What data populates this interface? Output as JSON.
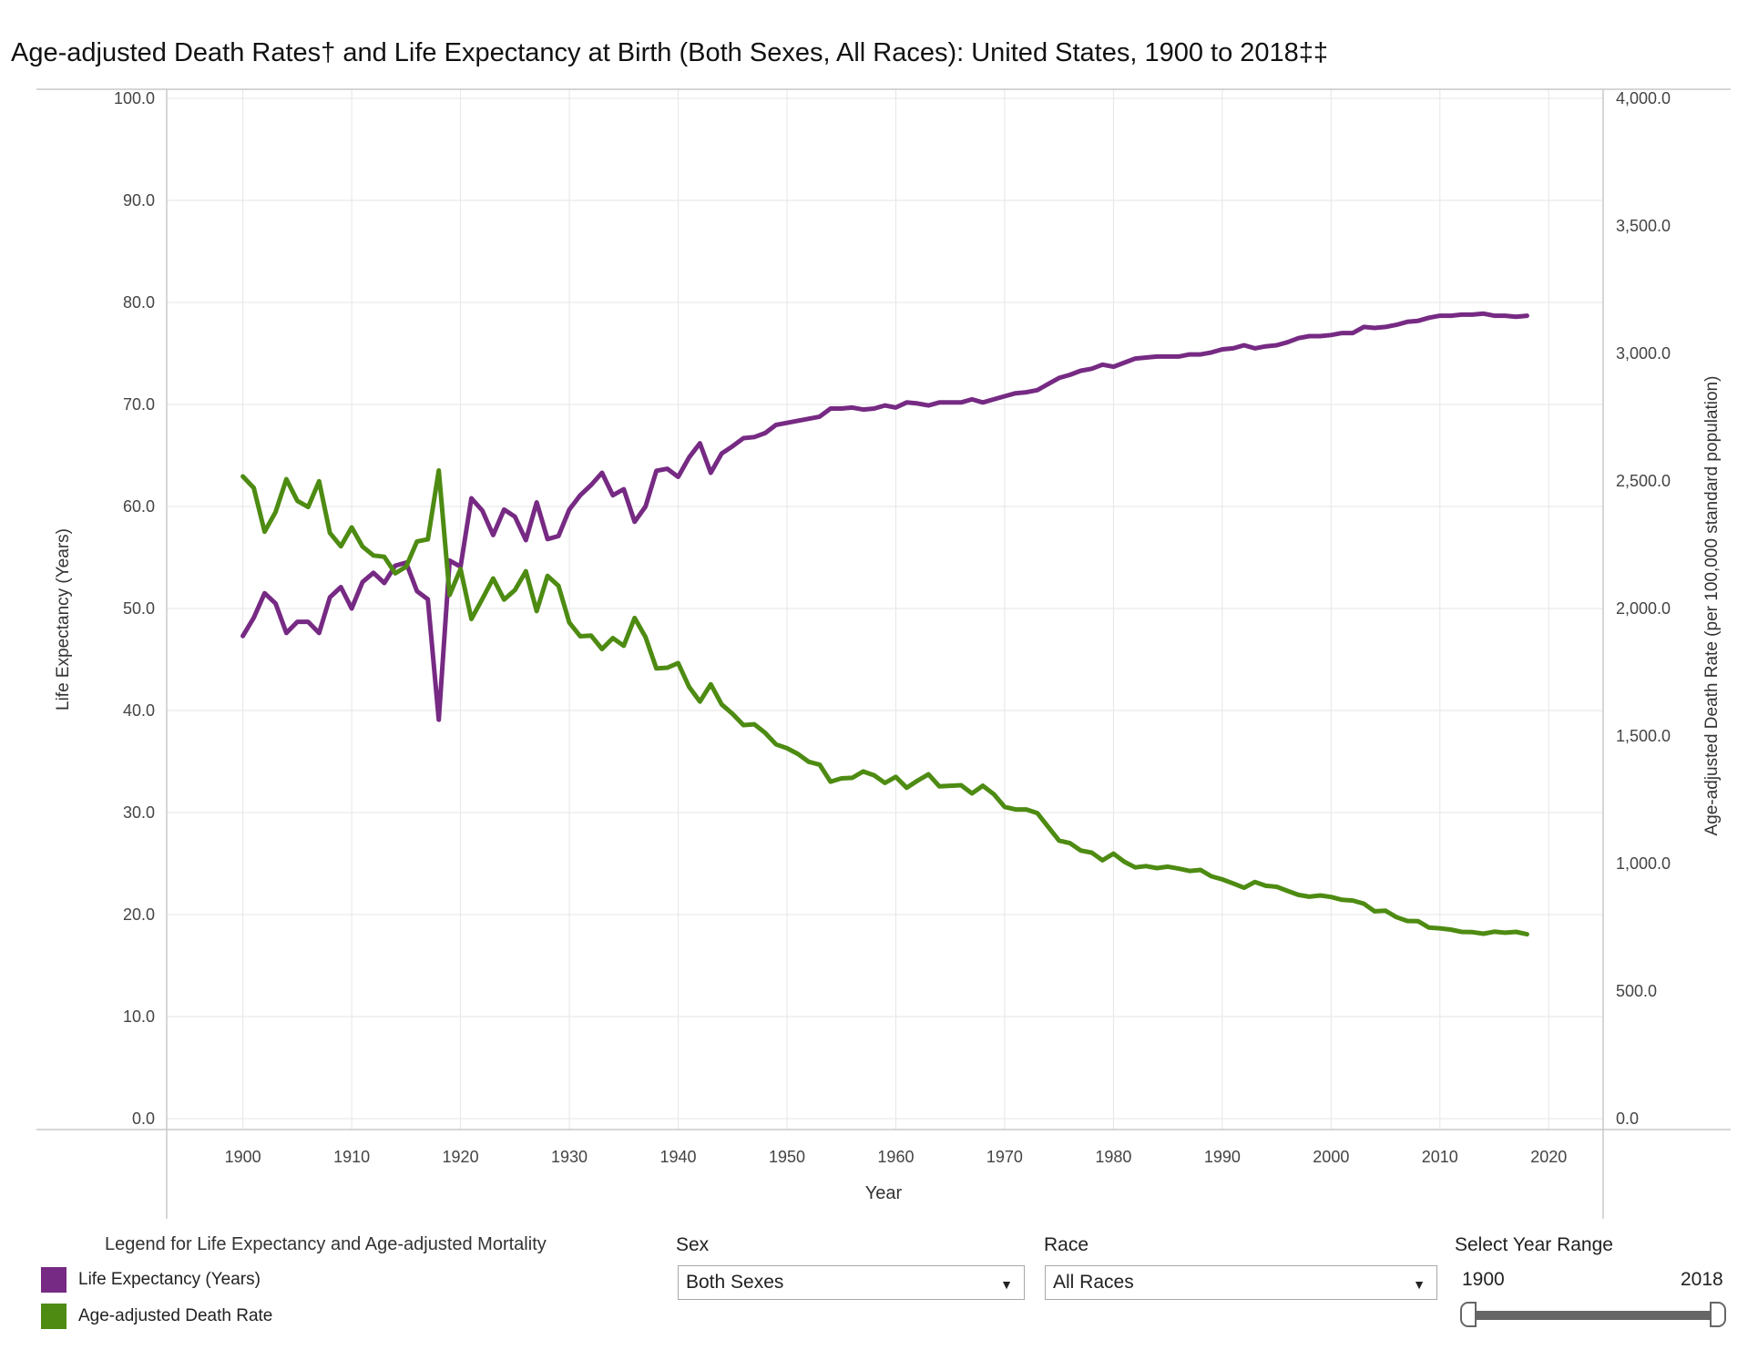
{
  "title": "Age-adjusted Death Rates† and Life Expectancy at Birth (Both Sexes, All Races): United States, 1900 to 2018‡‡",
  "legend": {
    "title": "Legend for Life Expectancy and Age-adjusted Mortality",
    "items": [
      {
        "label": "Life Expectancy (Years)",
        "color": "#762a83"
      },
      {
        "label": "Age-adjusted Death Rate",
        "color": "#4d8b12"
      }
    ]
  },
  "controls": {
    "sex": {
      "label": "Sex",
      "value": "Both Sexes"
    },
    "race": {
      "label": "Race",
      "value": "All Races"
    },
    "year_range": {
      "label": "Select Year Range",
      "start": "1900",
      "end": "2018"
    }
  },
  "chart_data": {
    "type": "line",
    "xlabel": "Year",
    "ylabel_left": "Life Expectancy (Years)",
    "ylabel_right": "Age-adjusted Death Rate (per 100,000 standard population)",
    "xlim": [
      1893,
      2025
    ],
    "ylim_left": [
      0,
      100
    ],
    "ylim_right": [
      0,
      4000
    ],
    "x_ticks": [
      "1900",
      "1910",
      "1920",
      "1930",
      "1940",
      "1950",
      "1960",
      "1970",
      "1980",
      "1990",
      "2000",
      "2010",
      "2020"
    ],
    "y_ticks_left": [
      "0.0",
      "10.0",
      "20.0",
      "30.0",
      "40.0",
      "50.0",
      "60.0",
      "70.0",
      "80.0",
      "90.0",
      "100.0"
    ],
    "y_ticks_right": [
      "0.0",
      "500.0",
      "1,000.0",
      "1,500.0",
      "2,000.0",
      "2,500.0",
      "3,000.0",
      "3,500.0",
      "4,000.0"
    ],
    "grid": true,
    "x": [
      1900,
      1901,
      1902,
      1903,
      1904,
      1905,
      1906,
      1907,
      1908,
      1909,
      1910,
      1911,
      1912,
      1913,
      1914,
      1915,
      1916,
      1917,
      1918,
      1919,
      1920,
      1921,
      1922,
      1923,
      1924,
      1925,
      1926,
      1927,
      1928,
      1929,
      1930,
      1931,
      1932,
      1933,
      1934,
      1935,
      1936,
      1937,
      1938,
      1939,
      1940,
      1941,
      1942,
      1943,
      1944,
      1945,
      1946,
      1947,
      1948,
      1949,
      1950,
      1951,
      1952,
      1953,
      1954,
      1955,
      1956,
      1957,
      1958,
      1959,
      1960,
      1961,
      1962,
      1963,
      1964,
      1965,
      1966,
      1967,
      1968,
      1969,
      1970,
      1971,
      1972,
      1973,
      1974,
      1975,
      1976,
      1977,
      1978,
      1979,
      1980,
      1981,
      1982,
      1983,
      1984,
      1985,
      1986,
      1987,
      1988,
      1989,
      1990,
      1991,
      1992,
      1993,
      1994,
      1995,
      1996,
      1997,
      1998,
      1999,
      2000,
      2001,
      2002,
      2003,
      2004,
      2005,
      2006,
      2007,
      2008,
      2009,
      2010,
      2011,
      2012,
      2013,
      2014,
      2015,
      2016,
      2017,
      2018
    ],
    "series": [
      {
        "name": "Life Expectancy (Years)",
        "axis": "left",
        "color": "#762a83",
        "values": [
          47.3,
          49.1,
          51.5,
          50.5,
          47.6,
          48.7,
          48.7,
          47.6,
          51.1,
          52.1,
          50.0,
          52.6,
          53.5,
          52.5,
          54.2,
          54.5,
          51.7,
          50.9,
          39.1,
          54.7,
          54.1,
          60.8,
          59.6,
          57.2,
          59.7,
          59.0,
          56.7,
          60.4,
          56.8,
          57.1,
          59.7,
          61.1,
          62.1,
          63.3,
          61.1,
          61.7,
          58.5,
          60.0,
          63.5,
          63.7,
          62.9,
          64.8,
          66.2,
          63.3,
          65.2,
          65.9,
          66.7,
          66.8,
          67.2,
          68.0,
          68.2,
          68.4,
          68.6,
          68.8,
          69.6,
          69.6,
          69.7,
          69.5,
          69.6,
          69.9,
          69.7,
          70.2,
          70.1,
          69.9,
          70.2,
          70.2,
          70.2,
          70.5,
          70.2,
          70.5,
          70.8,
          71.1,
          71.2,
          71.4,
          72.0,
          72.6,
          72.9,
          73.3,
          73.5,
          73.9,
          73.7,
          74.1,
          74.5,
          74.6,
          74.7,
          74.7,
          74.7,
          74.9,
          74.9,
          75.1,
          75.4,
          75.5,
          75.8,
          75.5,
          75.7,
          75.8,
          76.1,
          76.5,
          76.7,
          76.7,
          76.8,
          77.0,
          77.0,
          77.6,
          77.5,
          77.6,
          77.8,
          78.1,
          78.2,
          78.5,
          78.7,
          78.7,
          78.8,
          78.8,
          78.9,
          78.7,
          78.7,
          78.6,
          78.7
        ]
      },
      {
        "name": "Age-adjusted Death Rate",
        "axis": "right",
        "color": "#4d8b12",
        "values": [
          2518,
          2473,
          2301,
          2378,
          2507,
          2422,
          2398,
          2499,
          2296,
          2244,
          2318,
          2243,
          2208,
          2203,
          2138,
          2164,
          2263,
          2271,
          2541,
          2053,
          2155,
          1959,
          2037,
          2118,
          2035,
          2072,
          2146,
          1990,
          2128,
          2089,
          1945,
          1891,
          1894,
          1841,
          1884,
          1854,
          1963,
          1888,
          1765,
          1768,
          1786,
          1693,
          1635,
          1703,
          1624,
          1587,
          1543,
          1546,
          1512,
          1467,
          1452,
          1430,
          1399,
          1388,
          1321,
          1334,
          1336,
          1361,
          1346,
          1316,
          1340,
          1297,
          1325,
          1350,
          1303,
          1305,
          1307,
          1275,
          1305,
          1272,
          1222,
          1212,
          1212,
          1198,
          1144,
          1090,
          1080,
          1051,
          1043,
          1013,
          1039,
          1007,
          985,
          990,
          982,
          988,
          980,
          971,
          975,
          950,
          938,
          922,
          905,
          928,
          913,
          909,
          893,
          877,
          870,
          875,
          869,
          858,
          855,
          843,
          813,
          815,
          790,
          775,
          774,
          749,
          746,
          741,
          732,
          731,
          725,
          733,
          729,
          732,
          723
        ]
      }
    ]
  }
}
